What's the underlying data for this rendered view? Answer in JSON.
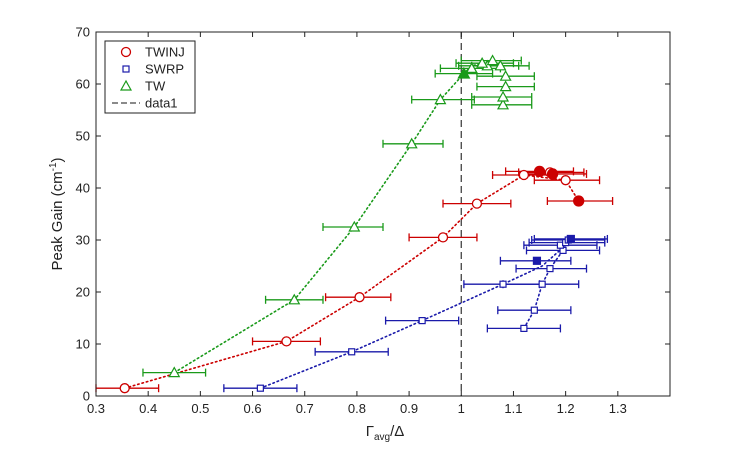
{
  "chart_data": {
    "type": "scatter",
    "xlabel": {
      "main": "Γ",
      "sub": "avg",
      "tail": "/Δ"
    },
    "ylabel": {
      "main": "Peak Gain (cm",
      "sup": "-1",
      "tail": ")"
    },
    "xlim": [
      0.3,
      1.4
    ],
    "ylim": [
      0,
      70
    ],
    "xticks": [
      0.3,
      0.4,
      0.5,
      0.6,
      0.7,
      0.8,
      0.9,
      1.0,
      1.1,
      1.2,
      1.3
    ],
    "xtick_labels": [
      "0.3",
      "0.4",
      "0.5",
      "0.6",
      "0.7",
      "0.8",
      "0.9",
      "1",
      "1.1",
      "1.2",
      "1.3"
    ],
    "yticks": [
      0,
      10,
      20,
      30,
      40,
      50,
      60,
      70
    ],
    "ytick_labels": [
      "0",
      "10",
      "20",
      "30",
      "40",
      "50",
      "60",
      "70"
    ],
    "grid": false,
    "legend_position": "top-left",
    "vline": {
      "name": "data1",
      "x": 1.0,
      "style": "dashed",
      "color": "#444444"
    },
    "series": [
      {
        "name": "TWINJ",
        "color": "#cc0000",
        "marker": "circle",
        "curve": [
          [
            0.355,
            1.5
          ],
          [
            0.665,
            10.5
          ],
          [
            0.805,
            19
          ],
          [
            0.965,
            30.5
          ],
          [
            1.03,
            37
          ],
          [
            1.12,
            42.5
          ],
          [
            1.2,
            41.5
          ],
          [
            1.225,
            37.5
          ]
        ],
        "points": [
          {
            "x": 0.355,
            "y": 1.5,
            "xerr": [
              0.3,
              0.42
            ],
            "filled": false
          },
          {
            "x": 0.665,
            "y": 10.5,
            "xerr": [
              0.6,
              0.73
            ],
            "filled": false
          },
          {
            "x": 0.805,
            "y": 19,
            "xerr": [
              0.74,
              0.865
            ],
            "filled": false
          },
          {
            "x": 0.965,
            "y": 30.5,
            "xerr": [
              0.9,
              1.03
            ],
            "filled": false
          },
          {
            "x": 1.03,
            "y": 37,
            "xerr": [
              0.965,
              1.095
            ],
            "filled": false
          },
          {
            "x": 1.12,
            "y": 42.5,
            "xerr": [
              1.06,
              1.18
            ],
            "filled": false
          },
          {
            "x": 1.15,
            "y": 43.2,
            "xerr": [
              1.085,
              1.215
            ],
            "filled": true
          },
          {
            "x": 1.17,
            "y": 43,
            "xerr": [
              1.11,
              1.235
            ],
            "filled": false
          },
          {
            "x": 1.175,
            "y": 42.7,
            "xerr": [
              1.12,
              1.24
            ],
            "filled": true
          },
          {
            "x": 1.2,
            "y": 41.5,
            "xerr": [
              1.14,
              1.265
            ],
            "filled": false
          },
          {
            "x": 1.225,
            "y": 37.5,
            "xerr": [
              1.165,
              1.29
            ],
            "filled": true
          }
        ]
      },
      {
        "name": "SWRP",
        "color": "#1a1aaa",
        "marker": "square",
        "curve": [
          [
            0.615,
            1.5
          ],
          [
            0.79,
            8.5
          ],
          [
            0.925,
            14.5
          ],
          [
            1.08,
            21.5
          ],
          [
            1.155,
            25
          ],
          [
            1.2,
            29
          ],
          [
            1.21,
            30.2
          ]
        ],
        "curve2": [
          [
            1.12,
            13
          ],
          [
            1.14,
            16.5
          ],
          [
            1.155,
            21.5
          ],
          [
            1.17,
            24.5
          ],
          [
            1.195,
            28
          ],
          [
            1.205,
            29.5
          ]
        ],
        "points": [
          {
            "x": 0.615,
            "y": 1.5,
            "xerr": [
              0.545,
              0.685
            ],
            "filled": false
          },
          {
            "x": 0.79,
            "y": 8.5,
            "xerr": [
              0.72,
              0.86
            ],
            "filled": false
          },
          {
            "x": 0.925,
            "y": 14.5,
            "xerr": [
              0.855,
              0.995
            ],
            "filled": false
          },
          {
            "x": 1.08,
            "y": 21.5,
            "xerr": [
              1.005,
              1.15
            ],
            "filled": false
          },
          {
            "x": 1.155,
            "y": 21.5,
            "xerr": [
              1.08,
              1.225
            ],
            "filled": false
          },
          {
            "x": 1.12,
            "y": 13,
            "xerr": [
              1.05,
              1.19
            ],
            "filled": false
          },
          {
            "x": 1.14,
            "y": 16.5,
            "xerr": [
              1.07,
              1.21
            ],
            "filled": false
          },
          {
            "x": 1.17,
            "y": 24.5,
            "xerr": [
              1.105,
              1.24
            ],
            "filled": false
          },
          {
            "x": 1.145,
            "y": 26,
            "xerr": [
              1.075,
              1.21
            ],
            "filled": true
          },
          {
            "x": 1.195,
            "y": 28,
            "xerr": [
              1.125,
              1.265
            ],
            "filled": false
          },
          {
            "x": 1.19,
            "y": 29,
            "xerr": [
              1.12,
              1.26
            ],
            "filled": false
          },
          {
            "x": 1.2,
            "y": 29.5,
            "xerr": [
              1.13,
              1.275
            ],
            "filled": false
          },
          {
            "x": 1.205,
            "y": 30,
            "xerr": [
              1.135,
              1.275
            ],
            "filled": false
          },
          {
            "x": 1.21,
            "y": 30.2,
            "xerr": [
              1.14,
              1.28
            ],
            "filled": true
          }
        ]
      },
      {
        "name": "TW",
        "color": "#1a9a1a",
        "marker": "triangle",
        "curve": [
          [
            0.45,
            4.5
          ],
          [
            0.68,
            18.5
          ],
          [
            0.795,
            32.5
          ],
          [
            0.905,
            48.5
          ],
          [
            0.96,
            57
          ],
          [
            1.005,
            62
          ],
          [
            1.02,
            63.5
          ],
          [
            1.04,
            64
          ],
          [
            1.06,
            64.5
          ]
        ],
        "points": [
          {
            "x": 0.45,
            "y": 4.5,
            "xerr": [
              0.39,
              0.51
            ],
            "filled": false
          },
          {
            "x": 0.68,
            "y": 18.5,
            "xerr": [
              0.625,
              0.735
            ],
            "filled": false
          },
          {
            "x": 0.795,
            "y": 32.5,
            "xerr": [
              0.735,
              0.85
            ],
            "filled": false
          },
          {
            "x": 0.905,
            "y": 48.5,
            "xerr": [
              0.85,
              0.965
            ],
            "filled": false
          },
          {
            "x": 0.96,
            "y": 57,
            "xerr": [
              0.905,
              1.025
            ],
            "filled": false
          },
          {
            "x": 1.08,
            "y": 56,
            "xerr": [
              1.02,
              1.135
            ],
            "filled": false
          },
          {
            "x": 1.08,
            "y": 57.5,
            "xerr": [
              1.02,
              1.135
            ],
            "filled": false
          },
          {
            "x": 1.085,
            "y": 59.5,
            "xerr": [
              1.03,
              1.14
            ],
            "filled": false
          },
          {
            "x": 1.085,
            "y": 61.5,
            "xerr": [
              1.03,
              1.14
            ],
            "filled": false
          },
          {
            "x": 1.005,
            "y": 62,
            "xerr": [
              0.95,
              1.06
            ],
            "filled": true
          },
          {
            "x": 1.02,
            "y": 63,
            "xerr": [
              0.96,
              1.075
            ],
            "filled": false
          },
          {
            "x": 1.05,
            "y": 63.5,
            "xerr": [
              0.995,
              1.11
            ],
            "filled": false
          },
          {
            "x": 1.04,
            "y": 64,
            "xerr": [
              0.99,
              1.1
            ],
            "filled": false
          },
          {
            "x": 1.06,
            "y": 64.5,
            "xerr": [
              1.0,
              1.115
            ],
            "filled": false
          },
          {
            "x": 1.075,
            "y": 63.5,
            "xerr": [
              1.02,
              1.13
            ],
            "filled": false
          }
        ]
      }
    ]
  }
}
